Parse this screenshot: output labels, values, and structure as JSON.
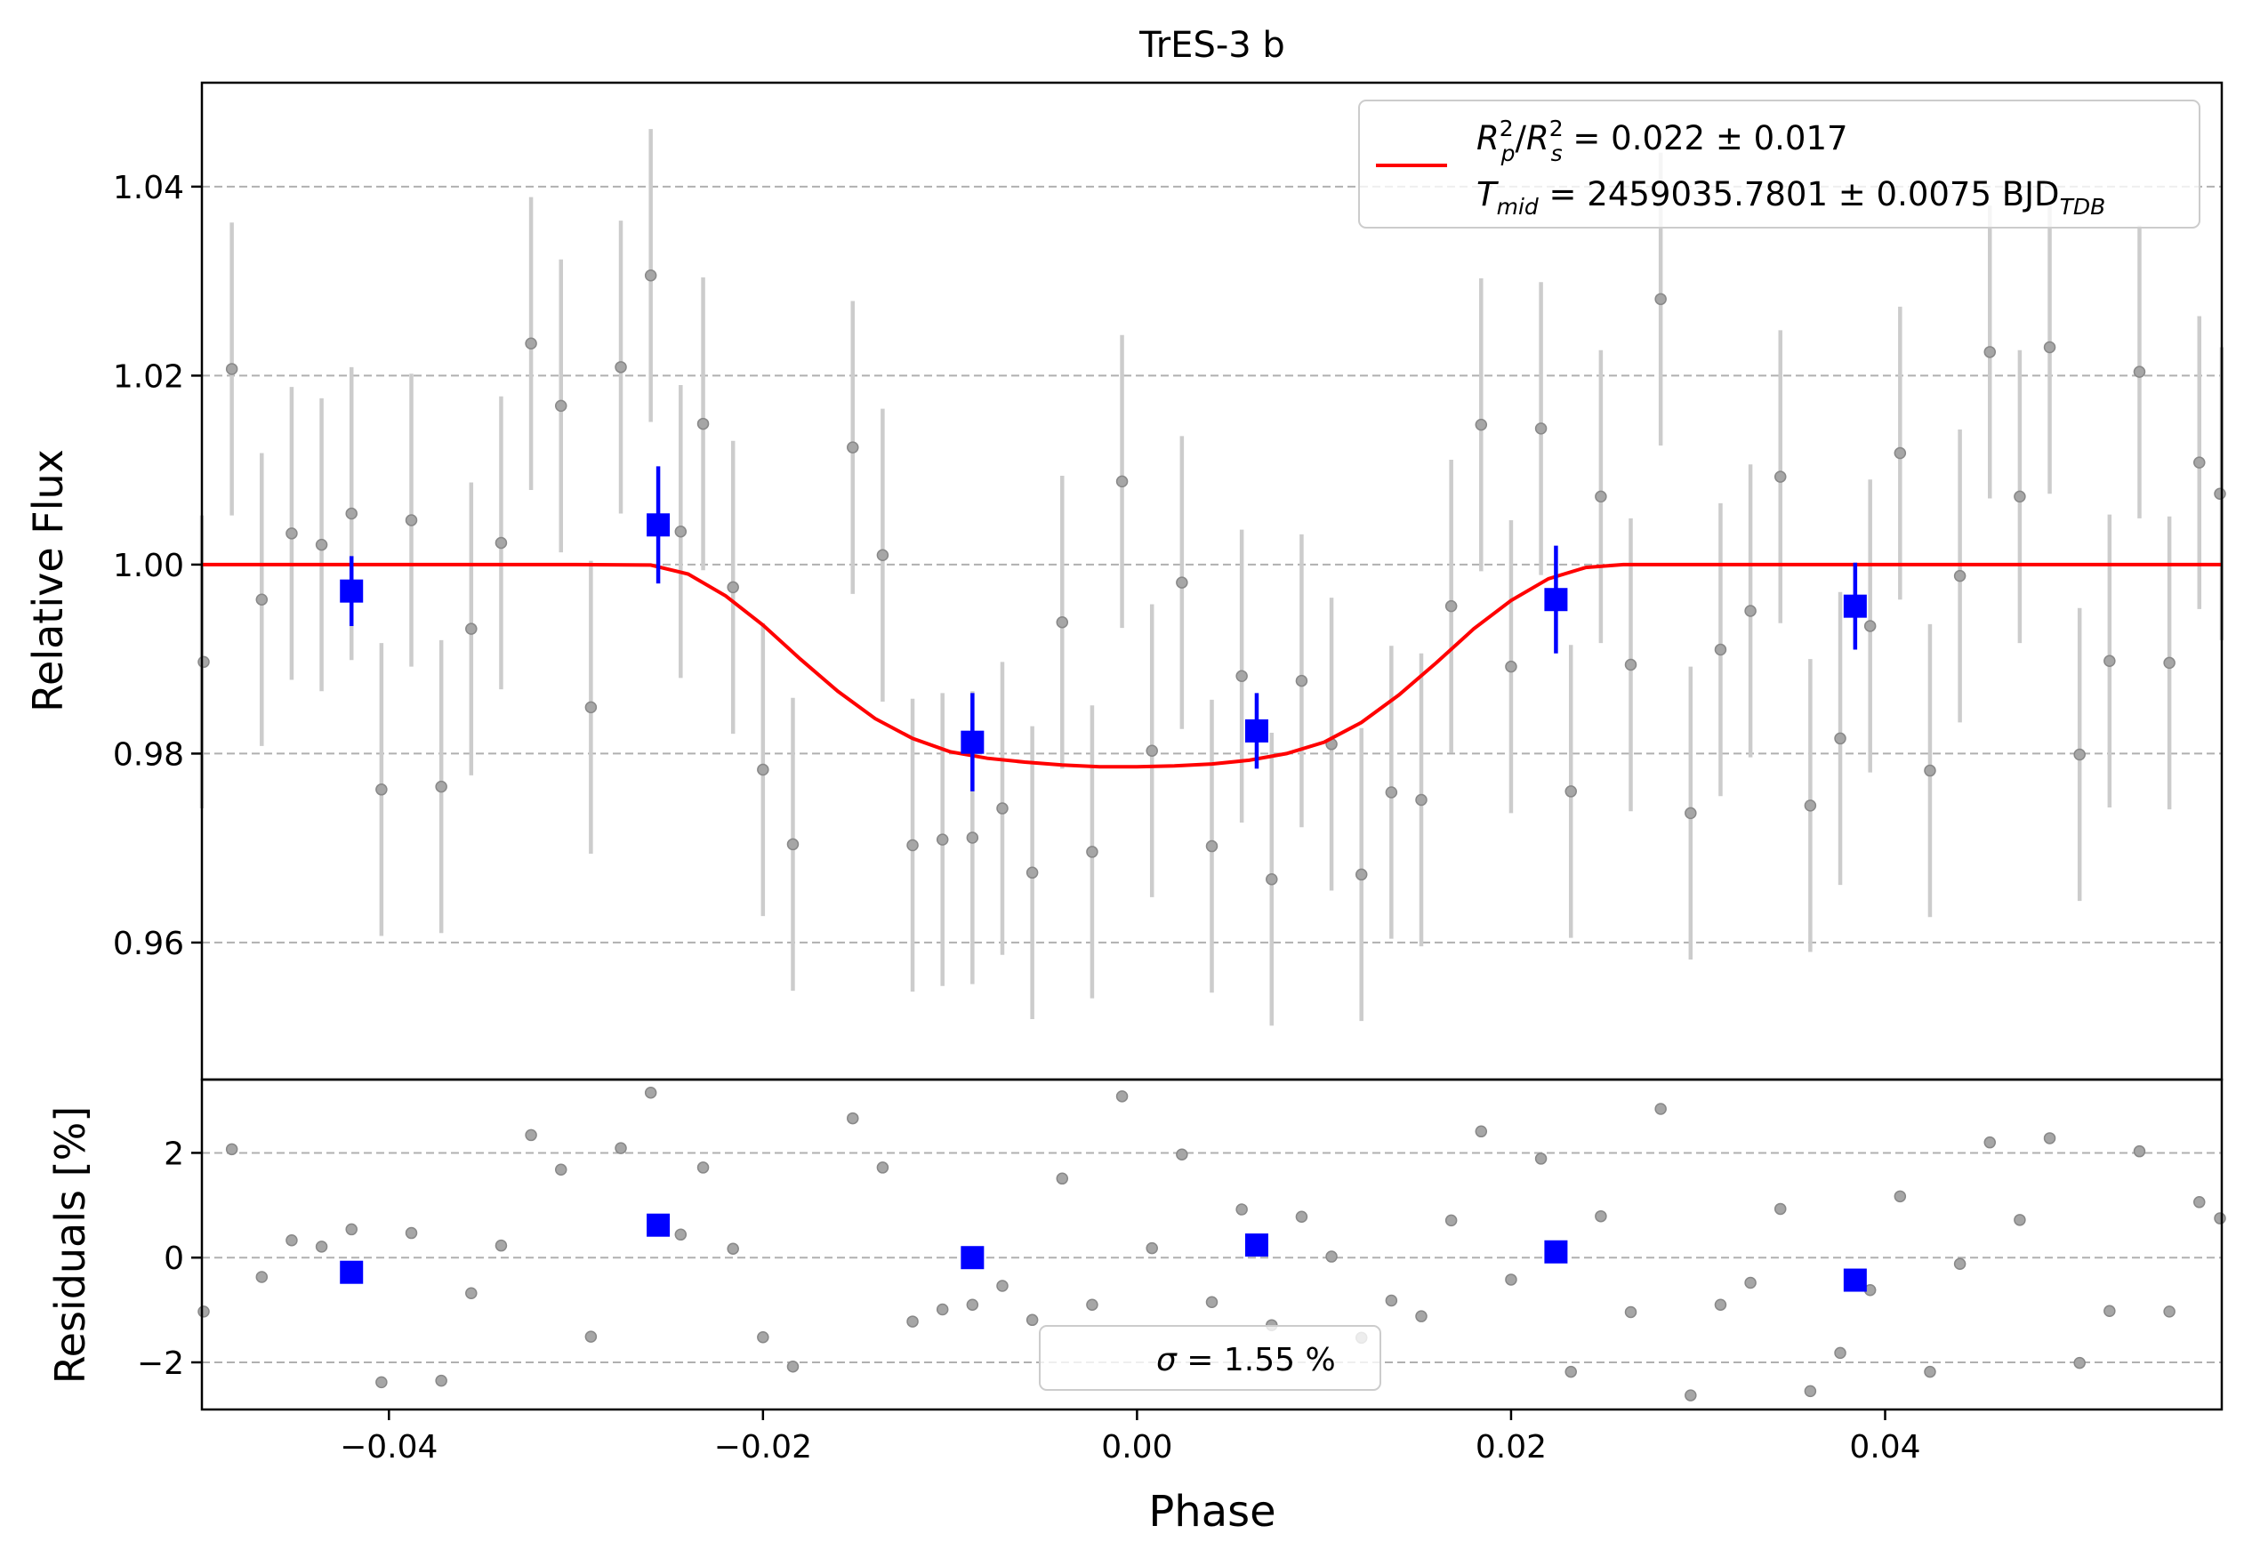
{
  "chart_data": [
    {
      "type": "scatter",
      "panel": "light-curve",
      "title": "TrES-3 b",
      "xlabel": "",
      "ylabel": "Relative Flux",
      "xlim": [
        -0.05,
        0.058
      ],
      "ylim": [
        0.9455,
        1.051
      ],
      "yticks": [
        0.96,
        0.98,
        1.0,
        1.02,
        1.04
      ],
      "ytick_labels": [
        "0.96",
        "0.98",
        "1.00",
        "1.02",
        "1.04"
      ],
      "grid": "horizontal dashed",
      "legend": {
        "placement": "top-right",
        "line1": "R²p/R²s = 0.022 ± 0.017",
        "line1_parts": {
          "r": "R",
          "p": "p",
          "two": "2",
          "slash": "/",
          "s": "s",
          "rest": " = 0.022 ± 0.017"
        },
        "line2": "Tmid = 2459035.7801 ± 0.0075 BJDTDB",
        "line2_parts": {
          "t": "T",
          "mid": "mid",
          "rest": " = 2459035.7801 ± 0.0075 BJD",
          "tdb": "TDB"
        }
      },
      "series": [
        {
          "kind": "raw",
          "color": "#999999",
          "x": [
            -0.05,
            -0.0484,
            -0.0468,
            -0.0452,
            -0.0436,
            -0.042,
            -0.0404,
            -0.0388,
            -0.0372,
            -0.0356,
            -0.034,
            -0.0324,
            -0.0308,
            -0.0292,
            -0.0276,
            -0.026,
            -0.0244,
            -0.0232,
            -0.0216,
            -0.02,
            -0.0184,
            -0.0152,
            -0.0136,
            -0.012,
            -0.0104,
            -0.0088,
            -0.0072,
            -0.0056,
            -0.004,
            -0.0024,
            -0.0008,
            0.0008,
            0.0024,
            0.004,
            0.0056,
            0.0072,
            0.0088,
            0.0104,
            0.012,
            0.0136,
            0.0152,
            0.0168,
            0.0184,
            0.02,
            0.0216,
            0.0232,
            0.0248,
            0.0264,
            0.028,
            0.0296,
            0.0312,
            0.0328,
            0.0344,
            0.036,
            0.0376,
            0.0392,
            0.0408,
            0.0424,
            0.044,
            0.0456,
            0.0472,
            0.0488,
            0.0504,
            0.052,
            0.0536,
            0.0552,
            0.0568,
            0.058
          ],
          "y": [
            0.9897,
            1.0207,
            0.9963,
            1.0033,
            1.0021,
            1.0054,
            0.9762,
            1.0047,
            0.9765,
            0.9932,
            1.0023,
            1.0234,
            1.0168,
            0.9849,
            1.0209,
            1.0306,
            1.0035,
            1.0149,
            0.9976,
            0.9783,
            0.9704,
            1.0124,
            1.001,
            0.9703,
            0.9709,
            0.9711,
            0.9742,
            0.9674,
            0.9939,
            0.9696,
            1.0088,
            0.9803,
            0.9981,
            0.9702,
            0.9882,
            0.9667,
            0.9877,
            0.981,
            0.9672,
            0.9759,
            0.9751,
            0.9956,
            1.0148,
            0.9892,
            1.0144,
            0.976,
            1.0072,
            0.9894,
            1.0281,
            0.9737,
            0.991,
            0.9951,
            1.0093,
            0.9745,
            0.9816,
            0.9935,
            1.0118,
            0.9782,
            0.9988,
            1.0225,
            1.0072,
            1.023,
            0.9799,
            0.9898,
            1.0204,
            0.9896,
            1.0108,
            1.0075
          ],
          "yerr": 0.0155
        },
        {
          "kind": "binned",
          "color": "#0000ff",
          "x": [
            -0.042,
            -0.0256,
            -0.0088,
            0.0064,
            0.0224,
            0.0384
          ],
          "y": [
            0.9972,
            1.0042,
            0.9812,
            0.9824,
            0.9963,
            0.9956
          ],
          "yerr": [
            0.0037,
            0.0062,
            0.0052,
            0.004,
            0.0057,
            0.0046
          ]
        },
        {
          "kind": "model",
          "color": "#ff0000",
          "x": [
            -0.05,
            -0.03,
            -0.026,
            -0.024,
            -0.022,
            -0.02,
            -0.018,
            -0.016,
            -0.014,
            -0.012,
            -0.01,
            -0.008,
            -0.006,
            -0.004,
            -0.002,
            0.0,
            0.002,
            0.004,
            0.006,
            0.008,
            0.01,
            0.012,
            0.014,
            0.016,
            0.018,
            0.02,
            0.022,
            0.024,
            0.026,
            0.03,
            0.058
          ],
          "y": [
            1.0,
            1.0,
            0.99995,
            0.999,
            0.9967,
            0.9936,
            0.99,
            0.9866,
            0.9837,
            0.9816,
            0.9802,
            0.9795,
            0.9791,
            0.9788,
            0.9786,
            0.9786,
            0.9787,
            0.9789,
            0.9793,
            0.98,
            0.9812,
            0.9833,
            0.9862,
            0.9896,
            0.9932,
            0.9962,
            0.9985,
            0.9997,
            1.0,
            1.0,
            1.0
          ]
        }
      ]
    },
    {
      "type": "scatter",
      "panel": "residuals",
      "title": "",
      "xlabel": "Phase",
      "ylabel": "Residuals [%]",
      "xlim": [
        -0.05,
        0.058
      ],
      "ylim": [
        -2.9,
        3.4
      ],
      "xticks": [
        -0.04,
        -0.02,
        0.0,
        0.02,
        0.04
      ],
      "xtick_labels": [
        "−0.04",
        "−0.02",
        "0.00",
        "0.02",
        "0.04"
      ],
      "yticks": [
        -2,
        0,
        2
      ],
      "ytick_labels": [
        "−2",
        "0",
        "2"
      ],
      "grid": "horizontal dashed",
      "legend": {
        "placement": "bottom-center",
        "sigma_symbol": "σ",
        "text": " = 1.55 %"
      },
      "series": [
        {
          "kind": "raw",
          "color": "#999999",
          "x": [
            -0.05,
            -0.0484,
            -0.0468,
            -0.0452,
            -0.0436,
            -0.042,
            -0.0404,
            -0.0388,
            -0.0372,
            -0.0356,
            -0.034,
            -0.0324,
            -0.0308,
            -0.0292,
            -0.0276,
            -0.026,
            -0.0244,
            -0.0232,
            -0.0216,
            -0.02,
            -0.0184,
            -0.0152,
            -0.0136,
            -0.012,
            -0.0104,
            -0.0088,
            -0.0072,
            -0.0056,
            -0.004,
            -0.0024,
            -0.0008,
            0.0008,
            0.0024,
            0.004,
            0.0056,
            0.0072,
            0.0088,
            0.0104,
            0.012,
            0.0136,
            0.0152,
            0.0168,
            0.0184,
            0.02,
            0.0216,
            0.0232,
            0.0248,
            0.0264,
            0.028,
            0.0296,
            0.0312,
            0.0328,
            0.0344,
            0.036,
            0.0376,
            0.0392,
            0.0408,
            0.0424,
            0.044,
            0.0456,
            0.0472,
            0.0488,
            0.0504,
            0.052,
            0.0536,
            0.0552,
            0.0568,
            0.058
          ],
          "y": [
            -1.03,
            2.07,
            -0.37,
            0.33,
            0.21,
            0.54,
            -2.38,
            0.47,
            -2.35,
            -0.68,
            0.23,
            2.34,
            1.68,
            -1.51,
            2.09,
            3.15,
            0.44,
            1.72,
            0.17,
            -1.52,
            -2.08,
            2.66,
            1.72,
            -1.22,
            -0.99,
            -0.9,
            -0.54,
            -1.19,
            1.51,
            -0.9,
            3.08,
            0.18,
            1.97,
            -0.85,
            0.92,
            -1.29,
            0.78,
            0.02,
            -1.53,
            -0.82,
            -1.12,
            0.71,
            2.41,
            -0.42,
            1.89,
            -2.18,
            0.79,
            -1.04,
            2.84,
            -2.63,
            -0.9,
            -0.48,
            0.93,
            -2.55,
            -1.82,
            -0.62,
            1.17,
            -2.18,
            -0.12,
            2.2,
            0.72,
            2.28,
            -2.01,
            -1.02,
            2.03,
            -1.03,
            1.06,
            0.75
          ]
        },
        {
          "kind": "binned",
          "color": "#0000ff",
          "x": [
            -0.042,
            -0.0256,
            -0.0088,
            0.0064,
            0.0224,
            0.0384
          ],
          "y": [
            -0.28,
            0.62,
            0.0,
            0.24,
            0.11,
            -0.43
          ]
        }
      ]
    }
  ]
}
